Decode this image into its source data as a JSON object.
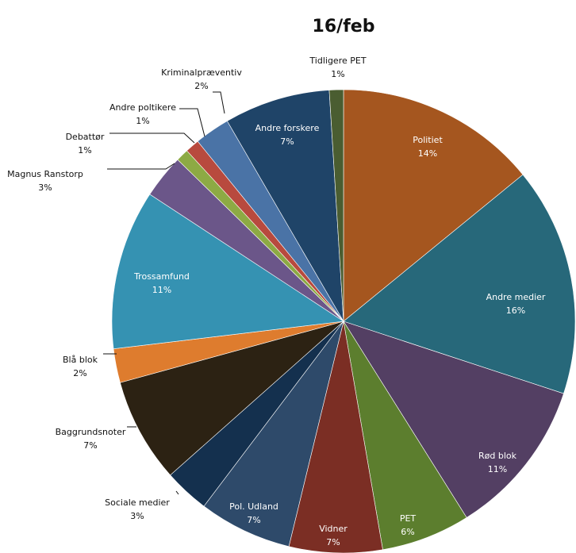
{
  "chart_data": {
    "type": "pie",
    "title": "16/feb",
    "start": "top, clockwise",
    "slices": [
      {
        "name": "Politiet",
        "pct": "14%",
        "value": 14.3,
        "color": "#A5561F",
        "label": "inside"
      },
      {
        "name": "Andre medier",
        "pct": "16%",
        "value": 16.2,
        "color": "#27687A",
        "label": "inside"
      },
      {
        "name": "Rød blok",
        "pct": "11%",
        "value": 11.2,
        "color": "#533F63",
        "label": "inside"
      },
      {
        "name": "PET",
        "pct": "6%",
        "value": 6.3,
        "color": "#5C7E2E",
        "label": "inside"
      },
      {
        "name": "Vidner",
        "pct": "7%",
        "value": 6.6,
        "color": "#7B2E24",
        "label": "inside"
      },
      {
        "name": "Pol. Udland",
        "pct": "7%",
        "value": 6.6,
        "color": "#2E4A6A",
        "label": "inside"
      },
      {
        "name": "Sociale medier",
        "pct": "3%",
        "value": 3.2,
        "color": "#14304E",
        "label": "outside"
      },
      {
        "name": "Baggrundsnoter",
        "pct": "7%",
        "value": 7.4,
        "color": "#2C2213",
        "label": "outside"
      },
      {
        "name": "Blå blok",
        "pct": "2%",
        "value": 2.4,
        "color": "#DE7C2E",
        "label": "outside"
      },
      {
        "name": "Trossamfund",
        "pct": "11%",
        "value": 11.3,
        "color": "#3592B2",
        "label": "inside"
      },
      {
        "name": "Magnus Ranstorp",
        "pct": "3%",
        "value": 3.1,
        "color": "#6B5689",
        "label": "outside"
      },
      {
        "name": "Debattør",
        "pct": "1%",
        "value": 0.9,
        "color": "#8DAA44",
        "label": "outside"
      },
      {
        "name": "Andre poltikere",
        "pct": "1%",
        "value": 1.0,
        "color": "#B84A3E",
        "label": "outside"
      },
      {
        "name": "Kriminalpræventiv",
        "pct": "2%",
        "value": 2.5,
        "color": "#4A73A6",
        "label": "outside"
      },
      {
        "name": "Andre forskere",
        "pct": "7%",
        "value": 7.5,
        "color": "#1F4468",
        "label": "inside"
      },
      {
        "name": "Tidligere PET",
        "pct": "1%",
        "value": 1.0,
        "color": "#4A5D31",
        "label": "outside"
      }
    ]
  }
}
